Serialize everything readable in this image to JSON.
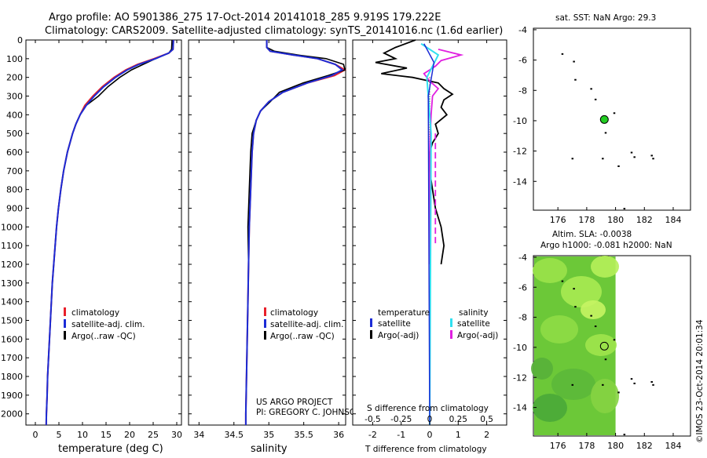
{
  "header": {
    "line1": "Argo profile: AO 5901386_275 17-Oct-2014 20141018_285 9.919S 179.222E",
    "line2": "Climatology: CARS2009. Satellite-adjusted climatology: synTS_20141016.nc (1.6d earlier)"
  },
  "colors": {
    "climatology": "#e8202a",
    "satellite": "#1c2cd6",
    "argo": "#000000",
    "sal_satellite": "#30e0f0",
    "sal_argo": "#e020e0",
    "sla_green": "#7be03a",
    "dot_green": "#22cc22"
  },
  "depth_axis": {
    "ticks": [
      0,
      100,
      200,
      300,
      400,
      500,
      600,
      700,
      800,
      900,
      1000,
      1100,
      1200,
      1300,
      1400,
      1500,
      1600,
      1700,
      1800,
      1900,
      2000
    ],
    "min": 0,
    "max": 2060
  },
  "temperature_panel": {
    "xlabel": "temperature (deg C)",
    "xticks": [
      0,
      5,
      10,
      15,
      20,
      25,
      30
    ],
    "xlim": [
      -2,
      31
    ],
    "legend": [
      "climatology",
      "satellite-adj. clim.",
      "Argo(..raw -QC)"
    ],
    "profile": [
      [
        0,
        29.3
      ],
      [
        50,
        29.2
      ],
      [
        70,
        28.3
      ],
      [
        100,
        25.5
      ],
      [
        130,
        22
      ],
      [
        160,
        19.5
      ],
      [
        200,
        17
      ],
      [
        250,
        14.5
      ],
      [
        300,
        12.5
      ],
      [
        350,
        10.8
      ],
      [
        400,
        9.5
      ],
      [
        450,
        8.6
      ],
      [
        500,
        7.9
      ],
      [
        600,
        6.8
      ],
      [
        700,
        6.0
      ],
      [
        800,
        5.4
      ],
      [
        900,
        4.9
      ],
      [
        1000,
        4.5
      ],
      [
        1100,
        4.2
      ],
      [
        1200,
        3.9
      ],
      [
        1300,
        3.6
      ],
      [
        1400,
        3.4
      ],
      [
        1500,
        3.2
      ],
      [
        1600,
        3.0
      ],
      [
        1700,
        2.8
      ],
      [
        1800,
        2.6
      ],
      [
        1900,
        2.5
      ],
      [
        2000,
        2.35
      ],
      [
        2060,
        2.3
      ]
    ]
  },
  "salinity_panel": {
    "xlabel": "salinity",
    "xticks": [
      "34",
      "34.5",
      "35",
      "35.5",
      "36"
    ],
    "xlim": [
      33.85,
      36.1
    ],
    "legend": [
      "climatology",
      "satellite-adj. clim.",
      "Argo(..raw -QC)"
    ],
    "profile": [
      [
        0,
        34.97
      ],
      [
        40,
        34.97
      ],
      [
        60,
        35.02
      ],
      [
        80,
        35.35
      ],
      [
        100,
        35.7
      ],
      [
        130,
        35.95
      ],
      [
        160,
        36.05
      ],
      [
        190,
        35.9
      ],
      [
        230,
        35.55
      ],
      [
        280,
        35.2
      ],
      [
        330,
        35.0
      ],
      [
        380,
        34.88
      ],
      [
        430,
        34.82
      ],
      [
        500,
        34.78
      ],
      [
        600,
        34.76
      ],
      [
        800,
        34.74
      ],
      [
        1000,
        34.72
      ],
      [
        1200,
        34.71
      ],
      [
        1400,
        34.7
      ],
      [
        1600,
        34.69
      ],
      [
        1800,
        34.68
      ],
      [
        2000,
        34.67
      ],
      [
        2060,
        34.67
      ]
    ],
    "argo_offsets": [
      [
        80,
        0.06
      ],
      [
        120,
        0.12
      ],
      [
        160,
        0.04
      ],
      [
        200,
        -0.05
      ],
      [
        240,
        -0.06
      ],
      [
        280,
        -0.05
      ],
      [
        330,
        0.02
      ]
    ]
  },
  "difference_panel": {
    "top_label": "S difference from climatology",
    "bottom_label": "T difference from climatology",
    "s_ticks": [
      "-0.5",
      "-0.25",
      "0",
      "0.25",
      "0.5"
    ],
    "t_ticks": [
      "-2",
      "-1",
      "0",
      "1",
      "2"
    ],
    "t_lim": [
      -2.7,
      2.7
    ],
    "legend_temperature": "temperature",
    "legend_salinity": "salinity",
    "legend_temp_items": [
      "satellite",
      "Argo(-adj)"
    ],
    "legend_sal_items": [
      "satellite",
      "Argo(-adj)"
    ],
    "t_argo_diff": [
      [
        0,
        -0.5
      ],
      [
        40,
        -1.2
      ],
      [
        70,
        -1.6
      ],
      [
        100,
        -1.2
      ],
      [
        120,
        -1.9
      ],
      [
        150,
        -0.8
      ],
      [
        180,
        -1.7
      ],
      [
        200,
        -0.6
      ],
      [
        230,
        0.3
      ],
      [
        260,
        0.5
      ],
      [
        290,
        0.8
      ],
      [
        320,
        0.5
      ],
      [
        360,
        0.4
      ],
      [
        400,
        0.6
      ],
      [
        450,
        0.2
      ],
      [
        500,
        0.3
      ],
      [
        550,
        0.1
      ],
      [
        600,
        0.0
      ],
      [
        700,
        0.0
      ],
      [
        800,
        0.1
      ],
      [
        900,
        0.2
      ],
      [
        1000,
        0.4
      ],
      [
        1100,
        0.5
      ],
      [
        1200,
        0.4
      ]
    ],
    "s_argo_diff_T_units": [
      [
        50,
        0.3
      ],
      [
        80,
        1.1
      ],
      [
        110,
        0.4
      ],
      [
        140,
        0.2
      ],
      [
        180,
        -0.2
      ],
      [
        220,
        0.0
      ],
      [
        260,
        0.3
      ],
      [
        300,
        0.1
      ],
      [
        400,
        0.05
      ],
      [
        600,
        0.0
      ],
      [
        800,
        0.0
      ],
      [
        1000,
        0.0
      ],
      [
        1200,
        0.0
      ]
    ]
  },
  "credits": {
    "line1": "US ARGO PROJECT",
    "line2": "PI: GREGORY C. JOHNSON"
  },
  "map_sst": {
    "title": "sat. SST: NaN Argo: 29.3",
    "xticks": [
      "176",
      "178",
      "180",
      "182",
      "184"
    ],
    "yticks": [
      "-4",
      "-6",
      "-8",
      "-10",
      "-12",
      "-14"
    ],
    "xlim": [
      174.3,
      185.2
    ],
    "ylim": [
      -15.9,
      -3.9
    ],
    "float_lon": 179.222,
    "float_lat": -9.919
  },
  "map_sla": {
    "title1": "Altim. SLA: -0.0038",
    "title2": "Argo h1000: -0.081 h2000: NaN",
    "xticks": [
      "176",
      "178",
      "180",
      "182",
      "184"
    ],
    "yticks": [
      "-4",
      "-6",
      "-8",
      "-10",
      "-12",
      "-14"
    ]
  },
  "timestamp": "©IMOS 23-Oct-2014 20:01:34"
}
